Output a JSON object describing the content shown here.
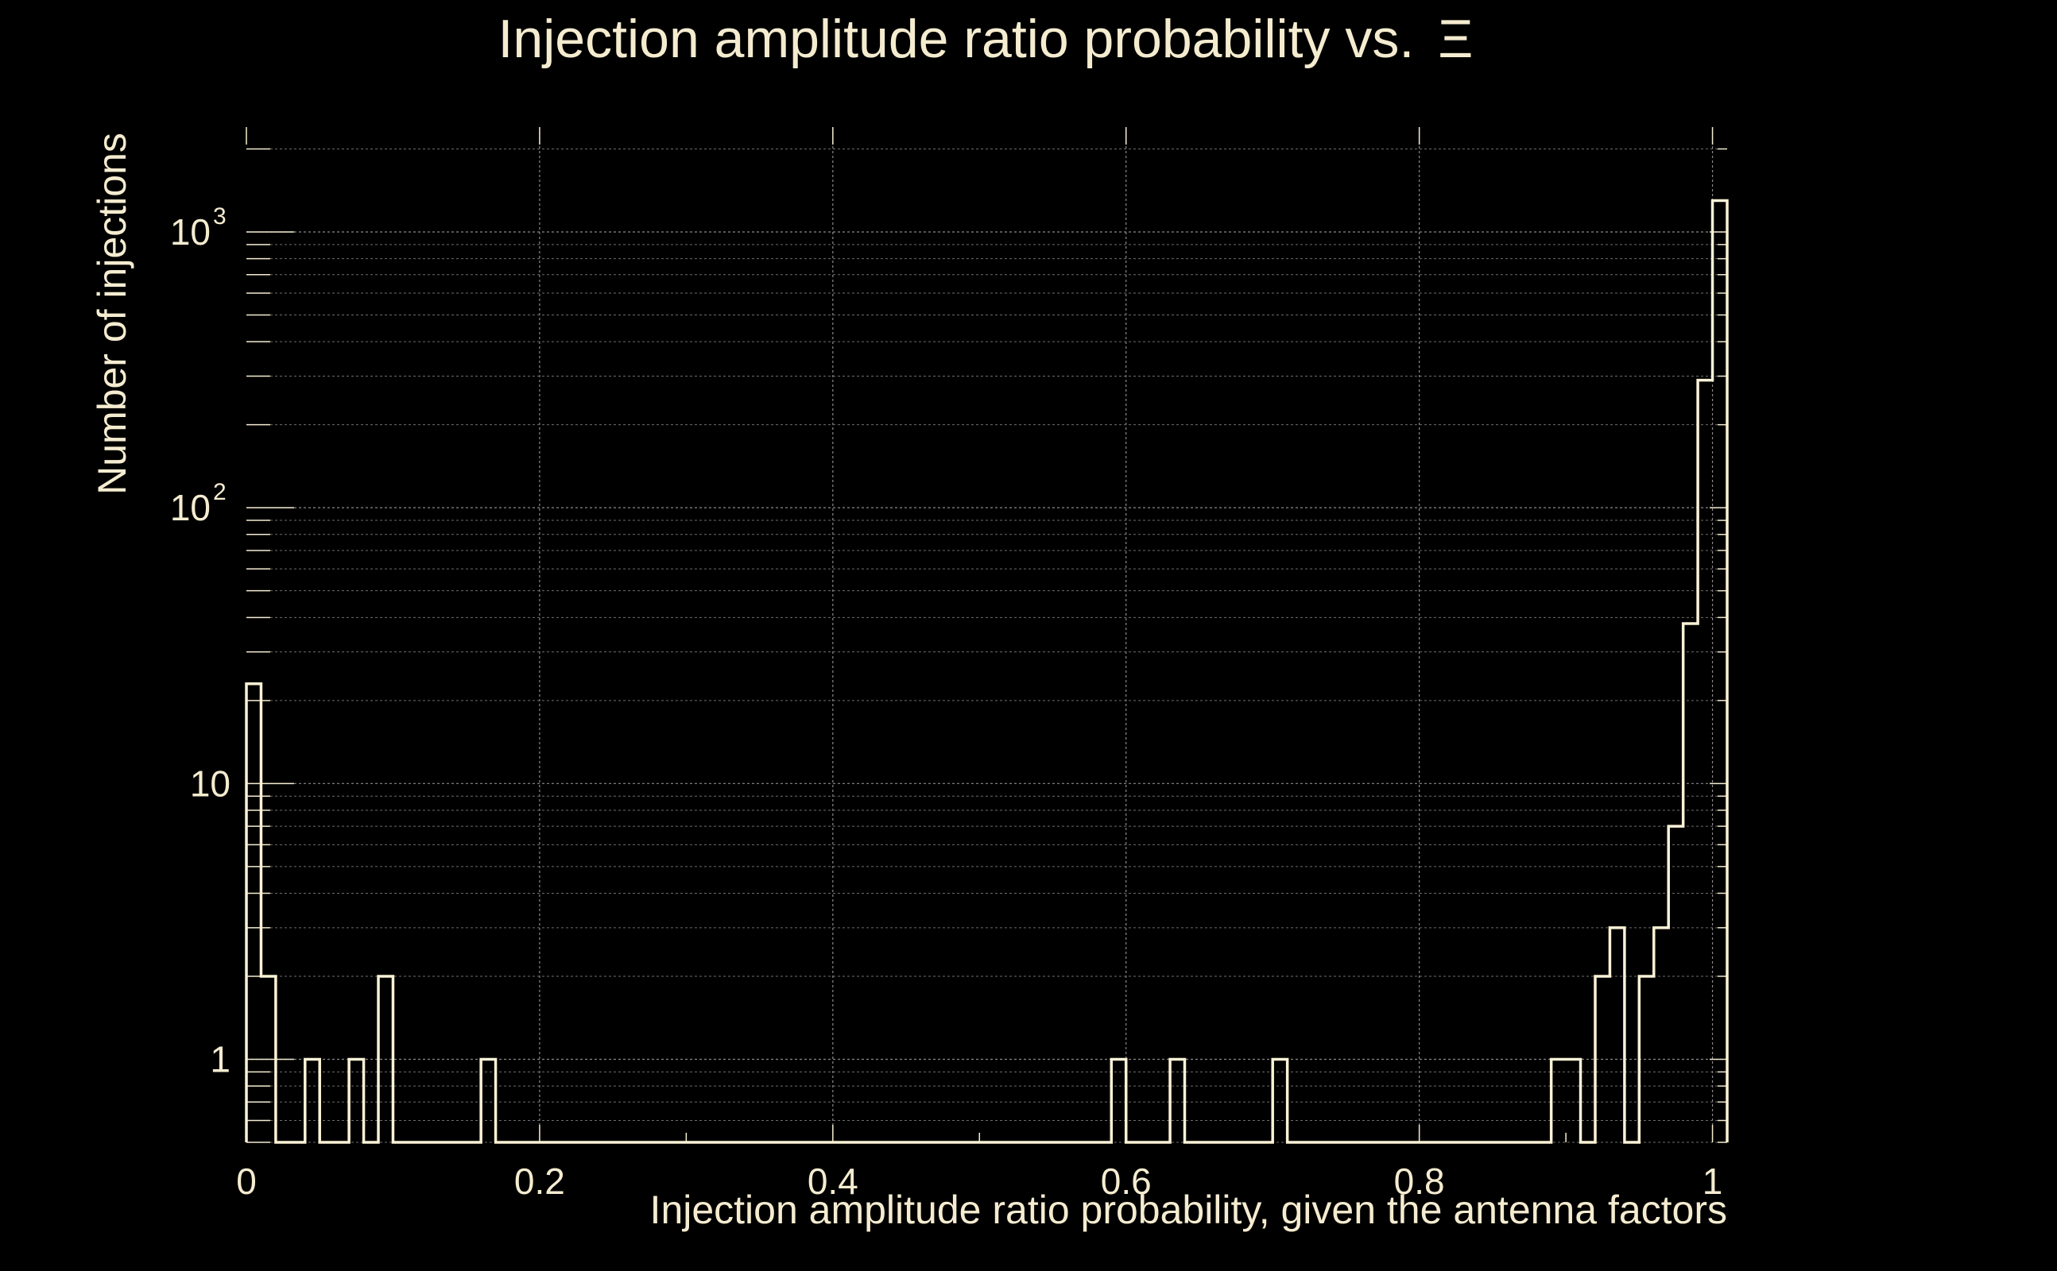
{
  "chart_data": {
    "type": "bar",
    "style": "step-histogram",
    "title_text": "Injection amplitude ratio probability vs.",
    "title_symbol": "Ξ",
    "xlabel": "Injection amplitude ratio probability, given the antenna factors",
    "ylabel": "Number of injections",
    "xlim": [
      0,
      1.01
    ],
    "ylim": [
      0.5,
      2400
    ],
    "y_scale": "log",
    "grid": true,
    "x_ticks": [
      "0",
      "0.2",
      "0.4",
      "0.6",
      "0.8",
      "1"
    ],
    "x_tick_values": [
      0,
      0.2,
      0.4,
      0.6,
      0.8,
      1.0
    ],
    "y_ticks": [
      {
        "value": 1,
        "base": "1",
        "exp": ""
      },
      {
        "value": 10,
        "base": "10",
        "exp": ""
      },
      {
        "value": 100,
        "base": "10",
        "exp": "2"
      },
      {
        "value": 1000,
        "base": "10",
        "exp": "3"
      }
    ],
    "bin_width": 0.01,
    "bins": [
      {
        "x": 0.0,
        "count": 23
      },
      {
        "x": 0.01,
        "count": 2
      },
      {
        "x": 0.04,
        "count": 1
      },
      {
        "x": 0.07,
        "count": 1
      },
      {
        "x": 0.09,
        "count": 2
      },
      {
        "x": 0.16,
        "count": 1
      },
      {
        "x": 0.59,
        "count": 1
      },
      {
        "x": 0.63,
        "count": 1
      },
      {
        "x": 0.7,
        "count": 1
      },
      {
        "x": 0.89,
        "count": 1
      },
      {
        "x": 0.9,
        "count": 1
      },
      {
        "x": 0.92,
        "count": 2
      },
      {
        "x": 0.93,
        "count": 3
      },
      {
        "x": 0.95,
        "count": 2
      },
      {
        "x": 0.96,
        "count": 3
      },
      {
        "x": 0.97,
        "count": 7
      },
      {
        "x": 0.98,
        "count": 38
      },
      {
        "x": 0.99,
        "count": 290
      },
      {
        "x": 1.0,
        "count": 1300
      }
    ],
    "colors": {
      "background": "#000000",
      "foreground": "#f5ecd0",
      "line": "#fbf2d6"
    }
  }
}
